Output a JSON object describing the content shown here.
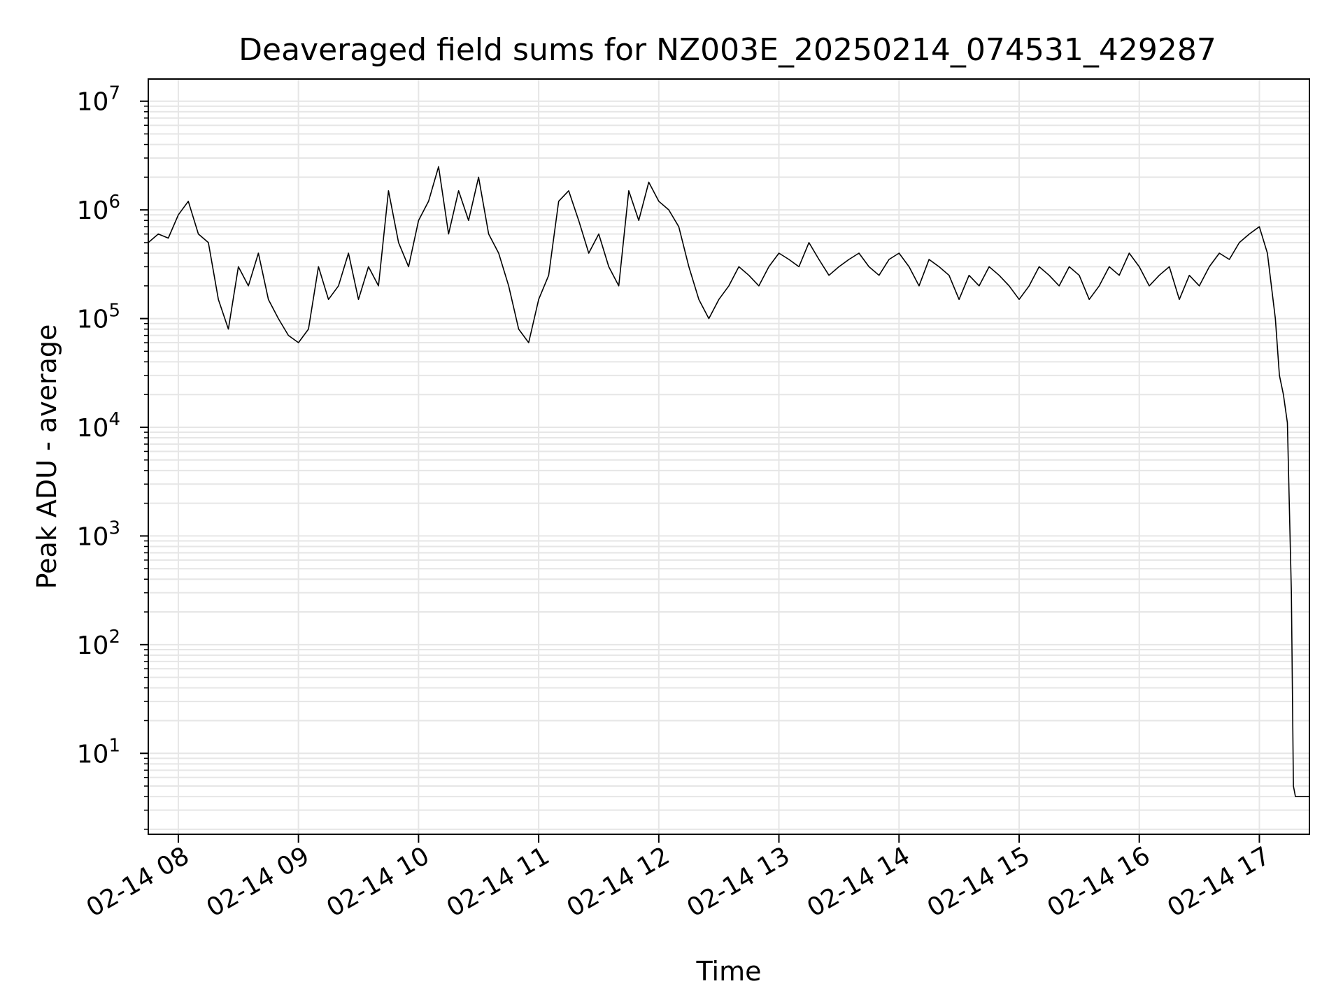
{
  "chart_data": {
    "type": "line",
    "title": "Deaveraged field sums for NZ003E_20250214_074531_429287",
    "xlabel": "Time",
    "ylabel": "Peak ADU - average",
    "yscale": "log",
    "ylim": [
      1.8,
      16000000
    ],
    "xlim": [
      "2025-02-14 07:45",
      "2025-02-14 17:25"
    ],
    "x_ticks": [
      {
        "time": "2025-02-14 08:00",
        "label": "02-14 08"
      },
      {
        "time": "2025-02-14 09:00",
        "label": "02-14 09"
      },
      {
        "time": "2025-02-14 10:00",
        "label": "02-14 10"
      },
      {
        "time": "2025-02-14 11:00",
        "label": "02-14 11"
      },
      {
        "time": "2025-02-14 12:00",
        "label": "02-14 12"
      },
      {
        "time": "2025-02-14 13:00",
        "label": "02-14 13"
      },
      {
        "time": "2025-02-14 14:00",
        "label": "02-14 14"
      },
      {
        "time": "2025-02-14 15:00",
        "label": "02-14 15"
      },
      {
        "time": "2025-02-14 16:00",
        "label": "02-14 16"
      },
      {
        "time": "2025-02-14 17:00",
        "label": "02-14 17"
      }
    ],
    "y_ticks": [
      {
        "value": 10,
        "base": "10",
        "exp": "1"
      },
      {
        "value": 100,
        "base": "10",
        "exp": "2"
      },
      {
        "value": 1000,
        "base": "10",
        "exp": "3"
      },
      {
        "value": 10000,
        "base": "10",
        "exp": "4"
      },
      {
        "value": 100000,
        "base": "10",
        "exp": "5"
      },
      {
        "value": 1000000,
        "base": "10",
        "exp": "6"
      },
      {
        "value": 10000000,
        "base": "10",
        "exp": "7"
      }
    ],
    "grid": true,
    "grid_color": "#e6e6e6",
    "line_color": "#000000",
    "series": [
      {
        "x": [
          "2025-02-14 07:45",
          "2025-02-14 07:50",
          "2025-02-14 07:55",
          "2025-02-14 08:00",
          "2025-02-14 08:05",
          "2025-02-14 08:10",
          "2025-02-14 08:15",
          "2025-02-14 08:20",
          "2025-02-14 08:25",
          "2025-02-14 08:30",
          "2025-02-14 08:35",
          "2025-02-14 08:40",
          "2025-02-14 08:45",
          "2025-02-14 08:50",
          "2025-02-14 08:55",
          "2025-02-14 09:00",
          "2025-02-14 09:05",
          "2025-02-14 09:10",
          "2025-02-14 09:15",
          "2025-02-14 09:20",
          "2025-02-14 09:25",
          "2025-02-14 09:30",
          "2025-02-14 09:35",
          "2025-02-14 09:40",
          "2025-02-14 09:45",
          "2025-02-14 09:50",
          "2025-02-14 09:55",
          "2025-02-14 10:00",
          "2025-02-14 10:05",
          "2025-02-14 10:10",
          "2025-02-14 10:15",
          "2025-02-14 10:20",
          "2025-02-14 10:25",
          "2025-02-14 10:30",
          "2025-02-14 10:35",
          "2025-02-14 10:40",
          "2025-02-14 10:45",
          "2025-02-14 10:50",
          "2025-02-14 10:55",
          "2025-02-14 11:00",
          "2025-02-14 11:05",
          "2025-02-14 11:10",
          "2025-02-14 11:15",
          "2025-02-14 11:20",
          "2025-02-14 11:25",
          "2025-02-14 11:30",
          "2025-02-14 11:35",
          "2025-02-14 11:40",
          "2025-02-14 11:45",
          "2025-02-14 11:50",
          "2025-02-14 11:55",
          "2025-02-14 12:00",
          "2025-02-14 12:05",
          "2025-02-14 12:10",
          "2025-02-14 12:15",
          "2025-02-14 12:20",
          "2025-02-14 12:25",
          "2025-02-14 12:30",
          "2025-02-14 12:35",
          "2025-02-14 12:40",
          "2025-02-14 12:45",
          "2025-02-14 12:50",
          "2025-02-14 12:55",
          "2025-02-14 13:00",
          "2025-02-14 13:05",
          "2025-02-14 13:10",
          "2025-02-14 13:15",
          "2025-02-14 13:20",
          "2025-02-14 13:25",
          "2025-02-14 13:30",
          "2025-02-14 13:35",
          "2025-02-14 13:40",
          "2025-02-14 13:45",
          "2025-02-14 13:50",
          "2025-02-14 13:55",
          "2025-02-14 14:00",
          "2025-02-14 14:05",
          "2025-02-14 14:10",
          "2025-02-14 14:15",
          "2025-02-14 14:20",
          "2025-02-14 14:25",
          "2025-02-14 14:30",
          "2025-02-14 14:35",
          "2025-02-14 14:40",
          "2025-02-14 14:45",
          "2025-02-14 14:50",
          "2025-02-14 14:55",
          "2025-02-14 15:00",
          "2025-02-14 15:05",
          "2025-02-14 15:10",
          "2025-02-14 15:15",
          "2025-02-14 15:20",
          "2025-02-14 15:25",
          "2025-02-14 15:30",
          "2025-02-14 15:35",
          "2025-02-14 15:40",
          "2025-02-14 15:45",
          "2025-02-14 15:50",
          "2025-02-14 15:55",
          "2025-02-14 16:00",
          "2025-02-14 16:05",
          "2025-02-14 16:10",
          "2025-02-14 16:15",
          "2025-02-14 16:20",
          "2025-02-14 16:25",
          "2025-02-14 16:30",
          "2025-02-14 16:35",
          "2025-02-14 16:40",
          "2025-02-14 16:45",
          "2025-02-14 16:50",
          "2025-02-14 16:55",
          "2025-02-14 17:00",
          "2025-02-14 17:04",
          "2025-02-14 17:08",
          "2025-02-14 17:10",
          "2025-02-14 17:12",
          "2025-02-14 17:14",
          "2025-02-14 17:16",
          "2025-02-14 17:17",
          "2025-02-14 17:18",
          "2025-02-14 17:25"
        ],
        "y": [
          500000,
          600000,
          550000,
          900000,
          1200000,
          600000,
          500000,
          150000,
          80000,
          300000,
          200000,
          400000,
          150000,
          100000,
          70000,
          60000,
          80000,
          300000,
          150000,
          200000,
          400000,
          150000,
          300000,
          200000,
          1500000,
          500000,
          300000,
          800000,
          1200000,
          2500000,
          600000,
          1500000,
          800000,
          2000000,
          600000,
          400000,
          200000,
          80000,
          60000,
          150000,
          250000,
          1200000,
          1500000,
          800000,
          400000,
          600000,
          300000,
          200000,
          1500000,
          800000,
          1800000,
          1200000,
          1000000,
          700000,
          300000,
          150000,
          100000,
          150000,
          200000,
          300000,
          250000,
          200000,
          300000,
          400000,
          350000,
          300000,
          500000,
          350000,
          250000,
          300000,
          350000,
          400000,
          300000,
          250000,
          350000,
          400000,
          300000,
          200000,
          350000,
          300000,
          250000,
          150000,
          250000,
          200000,
          300000,
          250000,
          200000,
          150000,
          200000,
          300000,
          250000,
          200000,
          300000,
          250000,
          150000,
          200000,
          300000,
          250000,
          400000,
          300000,
          200000,
          250000,
          300000,
          150000,
          250000,
          200000,
          300000,
          400000,
          350000,
          500000,
          600000,
          700000,
          400000,
          100000,
          30000,
          20000,
          11000,
          300,
          5,
          4,
          4
        ]
      }
    ]
  }
}
